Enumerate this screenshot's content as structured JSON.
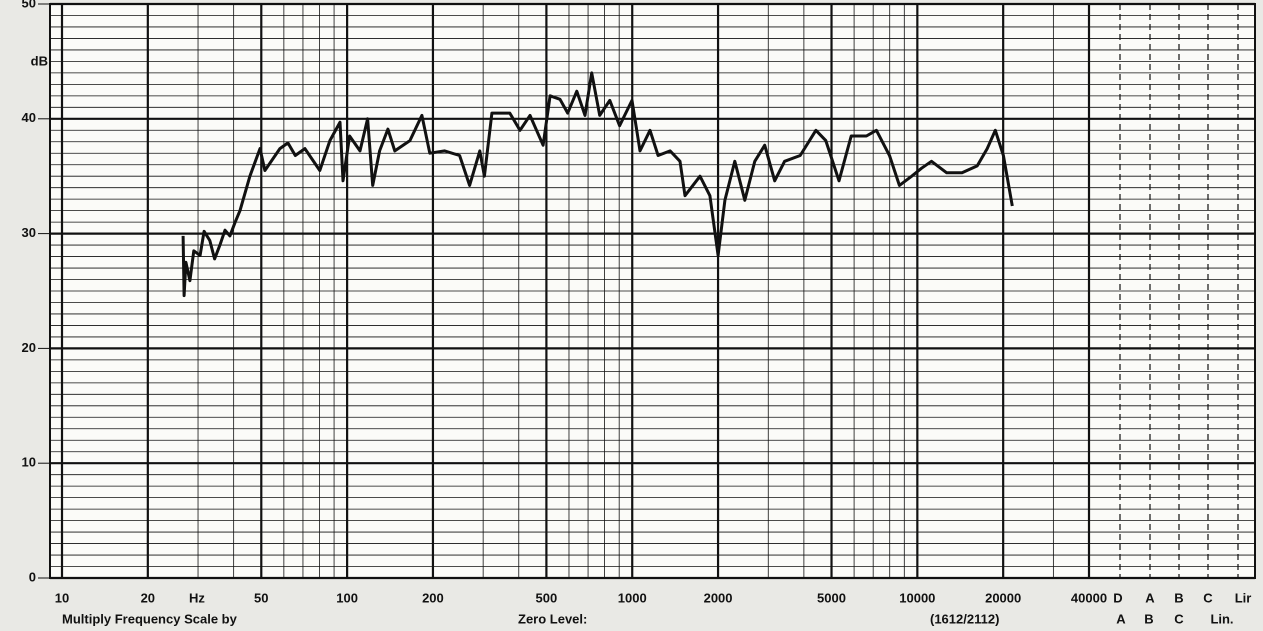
{
  "chart_data": {
    "type": "line",
    "y_axis_label": "dB",
    "x_unit_label": "Hz",
    "footer_left": "Multiply Frequency Scale by",
    "footer_mid": "Zero Level:",
    "footer_right": "(1612/2112)",
    "weighting_top": [
      "D",
      "A",
      "B",
      "C",
      "Lir"
    ],
    "weighting_bottom": [
      "A",
      "B",
      "C",
      "Lin."
    ],
    "log_x": true,
    "grid": true,
    "color": "#111111",
    "xlim": [
      10,
      40000
    ],
    "ylim": [
      0,
      50
    ],
    "xticks": [
      10,
      20,
      50,
      100,
      200,
      500,
      1000,
      2000,
      5000,
      10000,
      20000,
      40000
    ],
    "yticks": [
      0,
      10,
      20,
      30,
      40,
      50
    ],
    "xgrid": [
      10,
      20,
      30,
      40,
      50,
      60,
      70,
      80,
      90,
      100,
      200,
      300,
      400,
      500,
      600,
      700,
      800,
      900,
      1000,
      2000,
      3000,
      4000,
      5000,
      6000,
      7000,
      8000,
      9000,
      10000,
      20000,
      30000,
      40000
    ],
    "ygrid": [
      0,
      1,
      2,
      3,
      4,
      5,
      6,
      7,
      8,
      9,
      10,
      11,
      12,
      13,
      14,
      15,
      16,
      17,
      18,
      19,
      20,
      21,
      22,
      23,
      24,
      25,
      26,
      27,
      28,
      29,
      30,
      31,
      32,
      33,
      34,
      35,
      36,
      37,
      38,
      39,
      40,
      41,
      42,
      43,
      44,
      45,
      46,
      47,
      48,
      49,
      50
    ],
    "x": [
      26.6,
      26.8,
      27.2,
      28.1,
      29,
      30.5,
      31.5,
      33,
      34.3,
      35.8,
      37.3,
      38.8,
      40.5,
      42.1,
      45.6,
      49.5,
      51.5,
      58.1,
      62,
      65.8,
      71.1,
      80.2,
      87,
      94.4,
      96.7,
      102,
      111,
      118,
      123,
      130,
      139,
      147,
      166,
      183,
      195,
      220,
      248,
      269,
      292,
      303,
      322,
      372,
      404,
      438,
      487,
      515,
      558,
      594,
      639,
      683,
      721,
      769,
      834,
      903,
      998,
      1065,
      1154,
      1232,
      1358,
      1471,
      1532,
      1728,
      1873,
      2000,
      2113,
      2290,
      2482,
      2690,
      2915,
      3159,
      3423,
      3884,
      4406,
      4774,
      5310,
      5860,
      6627,
      7182,
      7987,
      8654,
      9552,
      10350,
      11210,
      12680,
      14340,
      16220,
      17580,
      18770,
      20030,
      21530
    ],
    "values": [
      29.8,
      24.6,
      27.5,
      25.9,
      28.5,
      28.1,
      30.2,
      29.4,
      27.8,
      29,
      30.3,
      29.8,
      31,
      32,
      35,
      37.4,
      35.5,
      37.4,
      37.9,
      36.8,
      37.4,
      35.5,
      38.1,
      39.7,
      34.6,
      38.5,
      37.2,
      40,
      34.2,
      37.2,
      39.1,
      37.2,
      38.1,
      40.3,
      37,
      37.2,
      36.8,
      34.2,
      37.2,
      35,
      40.5,
      40.5,
      39,
      40.3,
      37.7,
      42,
      41.7,
      40.5,
      42.4,
      40.3,
      44,
      40.3,
      41.6,
      39.4,
      41.6,
      37.2,
      39,
      36.8,
      37.2,
      36.3,
      33.3,
      35,
      33.3,
      28.1,
      32.9,
      36.3,
      32.9,
      36.3,
      37.7,
      34.6,
      36.3,
      36.8,
      39,
      38.1,
      34.6,
      38.5,
      38.5,
      39,
      36.8,
      34.2,
      35,
      35.7,
      36.3,
      35.3,
      35.3,
      35.9,
      37.4,
      39,
      36.8,
      32.4
    ]
  }
}
